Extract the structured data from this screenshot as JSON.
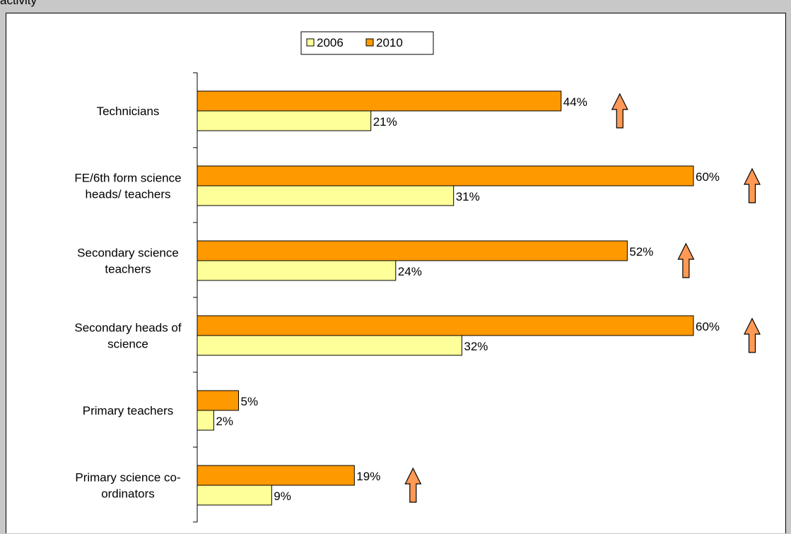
{
  "header": {
    "text": "activity"
  },
  "chart_data": {
    "type": "bar",
    "orientation": "horizontal",
    "categories": [
      "Technicians",
      "FE/6th form science heads/ teachers",
      "Secondary science teachers",
      "Secondary heads of science",
      "Primary teachers",
      "Primary science co-ordinators"
    ],
    "category_lines": [
      [
        "Technicians"
      ],
      [
        "FE/6th form science",
        "heads/ teachers"
      ],
      [
        "Secondary science",
        "teachers"
      ],
      [
        "Secondary heads of",
        "science"
      ],
      [
        "Primary teachers"
      ],
      [
        "Primary science co-",
        "ordinators"
      ]
    ],
    "series": [
      {
        "name": "2010",
        "values": [
          44,
          60,
          52,
          60,
          5,
          19
        ],
        "labels": [
          "44%",
          "60%",
          "52%",
          "60%",
          "5%",
          "19%"
        ],
        "color": "#ff9900"
      },
      {
        "name": "2006",
        "values": [
          21,
          31,
          24,
          32,
          2,
          9
        ],
        "labels": [
          "21%",
          "31%",
          "24%",
          "32%",
          "2%",
          "9%"
        ],
        "color": "#ffff99"
      }
    ],
    "increase_arrows": [
      true,
      true,
      true,
      true,
      false,
      true
    ],
    "arrow_color": "#ff9955",
    "legend": {
      "entries": [
        "2006",
        "2010"
      ],
      "placement": "top-center"
    },
    "xlim": [
      0,
      70
    ],
    "grid": false
  }
}
